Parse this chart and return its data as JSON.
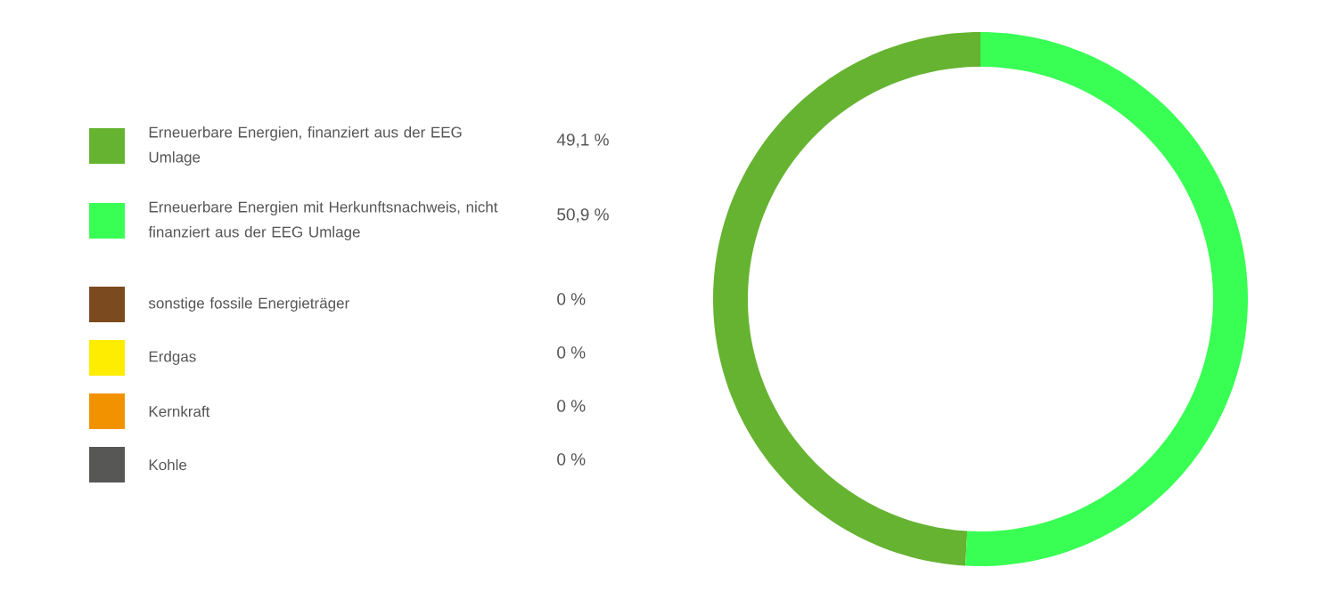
{
  "chart_data": {
    "type": "donut",
    "categories": [
      "Erneuerbare Energien, finanziert aus der EEG Umlage",
      "Erneuerbare Energien mit Herkunftsnachweis, nicht finanziert aus der EEG Umlage",
      "sonstige fossile Energieträger",
      "Erdgas",
      "Kernkraft",
      "Kohle"
    ],
    "values": [
      49.1,
      50.9,
      0,
      0,
      0,
      0
    ],
    "colors": [
      "#66b332",
      "#39ff54",
      "#7b4a1e",
      "#ffed00",
      "#f39200",
      "#575756"
    ],
    "value_labels": [
      "49,1 %",
      "50,9 %",
      "0 %",
      "0 %",
      "0 %",
      "0 %"
    ],
    "legend": "left"
  }
}
